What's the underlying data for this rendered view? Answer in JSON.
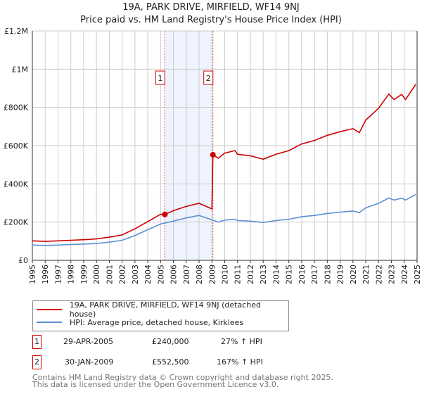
{
  "title": "19A, PARK DRIVE, MIRFIELD, WF14 9NJ",
  "subtitle": "Price paid vs. HM Land Registry's House Price Index (HPI)",
  "chart_data": {
    "type": "line",
    "title": "19A, PARK DRIVE, MIRFIELD, WF14 9NJ",
    "subtitle": "Price paid vs. HM Land Registry's House Price Index (HPI)",
    "xlim": [
      1995,
      2025
    ],
    "ylim": [
      0,
      1200000
    ],
    "x_ticks": [
      "1995",
      "1996",
      "1997",
      "1998",
      "1999",
      "2000",
      "2001",
      "2002",
      "2003",
      "2004",
      "2005",
      "2006",
      "2007",
      "2008",
      "2009",
      "2010",
      "2011",
      "2012",
      "2013",
      "2014",
      "2015",
      "2016",
      "2017",
      "2018",
      "2019",
      "2020",
      "2021",
      "2022",
      "2023",
      "2024",
      "2025"
    ],
    "y_ticks": [
      {
        "v": 0,
        "label": "£0"
      },
      {
        "v": 200000,
        "label": "£200K"
      },
      {
        "v": 400000,
        "label": "£400K"
      },
      {
        "v": 600000,
        "label": "£600K"
      },
      {
        "v": 800000,
        "label": "£800K"
      },
      {
        "v": 1000000,
        "label": "£1M"
      },
      {
        "v": 1200000,
        "label": "£1.2M"
      }
    ],
    "grid": true,
    "colors": {
      "property": "#cc0000",
      "hpi": "#5b8fd4",
      "shade": "#eef3fd"
    },
    "series": [
      {
        "name": "19A, PARK DRIVE, MIRFIELD, WF14 9NJ (detached house)",
        "key": "property",
        "points": [
          [
            1995,
            102000
          ],
          [
            1996,
            99000
          ],
          [
            1997,
            102000
          ],
          [
            1998,
            105000
          ],
          [
            1999,
            108000
          ],
          [
            2000,
            112000
          ],
          [
            2001,
            121000
          ],
          [
            2002,
            133000
          ],
          [
            2003,
            165000
          ],
          [
            2004,
            203000
          ],
          [
            2005,
            241000
          ],
          [
            2005.33,
            240000
          ],
          [
            2006,
            260000
          ],
          [
            2007,
            282000
          ],
          [
            2008,
            298000
          ],
          [
            2009.0,
            269000
          ],
          [
            2009.08,
            552500
          ],
          [
            2009.5,
            534000
          ],
          [
            2010,
            561000
          ],
          [
            2010.8,
            574000
          ],
          [
            2011,
            555000
          ],
          [
            2012,
            547000
          ],
          [
            2013,
            529000
          ],
          [
            2014,
            555000
          ],
          [
            2015,
            574000
          ],
          [
            2016,
            609000
          ],
          [
            2017,
            627000
          ],
          [
            2018,
            654000
          ],
          [
            2019,
            673000
          ],
          [
            2020,
            689000
          ],
          [
            2020.5,
            668000
          ],
          [
            2021,
            734000
          ],
          [
            2022,
            796000
          ],
          [
            2022.8,
            870000
          ],
          [
            2023.2,
            841000
          ],
          [
            2023.8,
            868000
          ],
          [
            2024.1,
            841000
          ],
          [
            2024.9,
            921000
          ]
        ]
      },
      {
        "name": "HPI: Average price, detached house, Kirklees",
        "key": "hpi",
        "points": [
          [
            1995,
            80000
          ],
          [
            1996,
            78000
          ],
          [
            1997,
            80000
          ],
          [
            1998,
            83000
          ],
          [
            1999,
            85000
          ],
          [
            2000,
            88000
          ],
          [
            2001,
            95000
          ],
          [
            2002,
            105000
          ],
          [
            2003,
            130000
          ],
          [
            2004,
            160000
          ],
          [
            2005,
            190000
          ],
          [
            2006,
            205000
          ],
          [
            2007,
            222000
          ],
          [
            2008,
            235000
          ],
          [
            2009.0,
            212000
          ],
          [
            2009.5,
            200000
          ],
          [
            2010,
            210000
          ],
          [
            2010.8,
            215000
          ],
          [
            2011,
            208000
          ],
          [
            2012,
            205000
          ],
          [
            2013,
            198000
          ],
          [
            2014,
            208000
          ],
          [
            2015,
            215000
          ],
          [
            2016,
            228000
          ],
          [
            2017,
            235000
          ],
          [
            2018,
            245000
          ],
          [
            2019,
            252000
          ],
          [
            2020,
            258000
          ],
          [
            2020.5,
            250000
          ],
          [
            2021,
            275000
          ],
          [
            2022,
            298000
          ],
          [
            2022.8,
            326000
          ],
          [
            2023.2,
            315000
          ],
          [
            2023.8,
            325000
          ],
          [
            2024.1,
            315000
          ],
          [
            2024.9,
            345000
          ]
        ]
      }
    ],
    "sales": [
      {
        "label": "1",
        "x": 2005.33,
        "date": "29-APR-2005",
        "price": 240000,
        "price_label": "£240,000",
        "hpi_change": "27% ↑ HPI"
      },
      {
        "label": "2",
        "x": 2009.08,
        "date": "30-JAN-2009",
        "price": 552500,
        "price_label": "£552,500",
        "hpi_change": "167% ↑ HPI"
      }
    ],
    "legend_placement": "bottom"
  },
  "footer": {
    "line1": "Contains HM Land Registry data © Crown copyright and database right 2025.",
    "line2": "This data is licensed under the Open Government Licence v3.0."
  }
}
